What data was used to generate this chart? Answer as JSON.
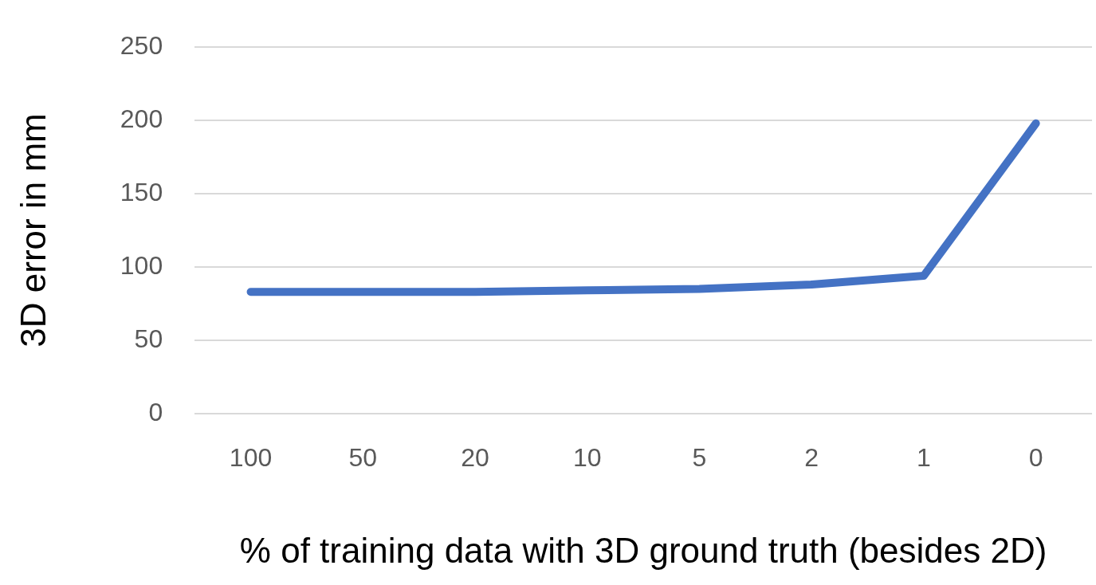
{
  "chart_data": {
    "type": "line",
    "xlabel": "% of training data with 3D ground truth (besides 2D)",
    "ylabel": "3D error in mm",
    "categories": [
      "100",
      "50",
      "20",
      "10",
      "5",
      "2",
      "1",
      "0"
    ],
    "series": [
      {
        "color": "#4472c4",
        "values": [
          83,
          83,
          83,
          84,
          85,
          88,
          94,
          198
        ]
      }
    ],
    "ylim": [
      0,
      250
    ],
    "yticks": [
      0,
      50,
      100,
      150,
      200,
      250
    ],
    "grid": "y",
    "legend": false,
    "marker": "none",
    "line_style": "solid"
  }
}
